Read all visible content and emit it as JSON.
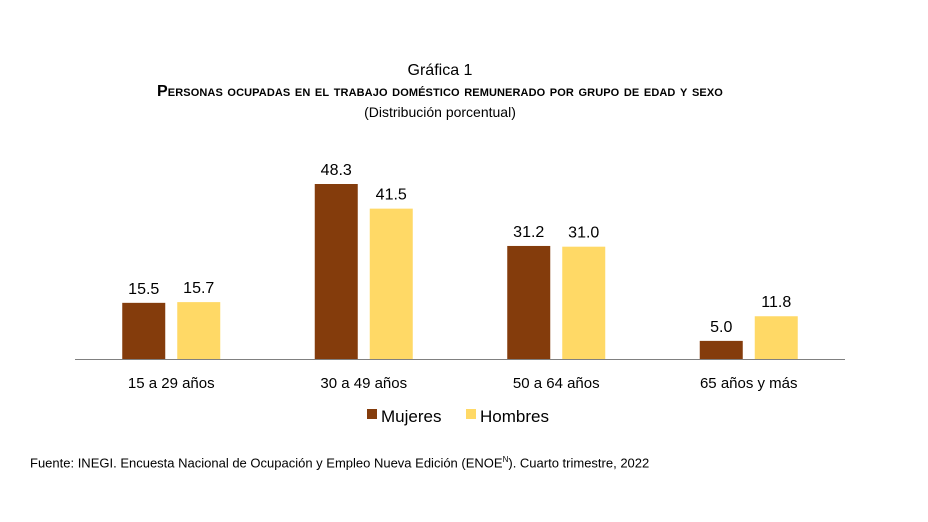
{
  "header": {
    "label": "Gráfica 1",
    "title": "Personas ocupadas en el trabajo doméstico remunerado por grupo de edad y sexo",
    "subtitle": "(Distribución porcentual)"
  },
  "chart_data": {
    "type": "bar",
    "title": "Personas ocupadas en el trabajo doméstico remunerado por grupo de edad y sexo",
    "subtitle": "(Distribución porcentual)",
    "categories": [
      "15 a 29 años",
      "30 a 49 años",
      "50 a 64 años",
      "65 años y más"
    ],
    "series": [
      {
        "name": "Mujeres",
        "values": [
          15.5,
          48.3,
          31.2,
          5.0
        ],
        "value_labels": [
          "15.5",
          "48.3",
          "31.2",
          "5.0"
        ],
        "color": "#843C0C"
      },
      {
        "name": "Hombres",
        "values": [
          15.7,
          41.5,
          31.0,
          11.8
        ],
        "value_labels": [
          "15.7",
          "41.5",
          "31.0",
          "11.8"
        ],
        "color": "#FFD966"
      }
    ],
    "ylim": [
      0,
      48.3
    ],
    "xlabel": "",
    "ylabel": "",
    "grid": false,
    "legend": "bottom"
  },
  "source": {
    "prefix": "Fuente: INEGI. Encuesta Nacional de Ocupación y Empleo Nueva Edición (ENOE",
    "sup": "N",
    "suffix": "). Cuarto trimestre, 2022"
  }
}
